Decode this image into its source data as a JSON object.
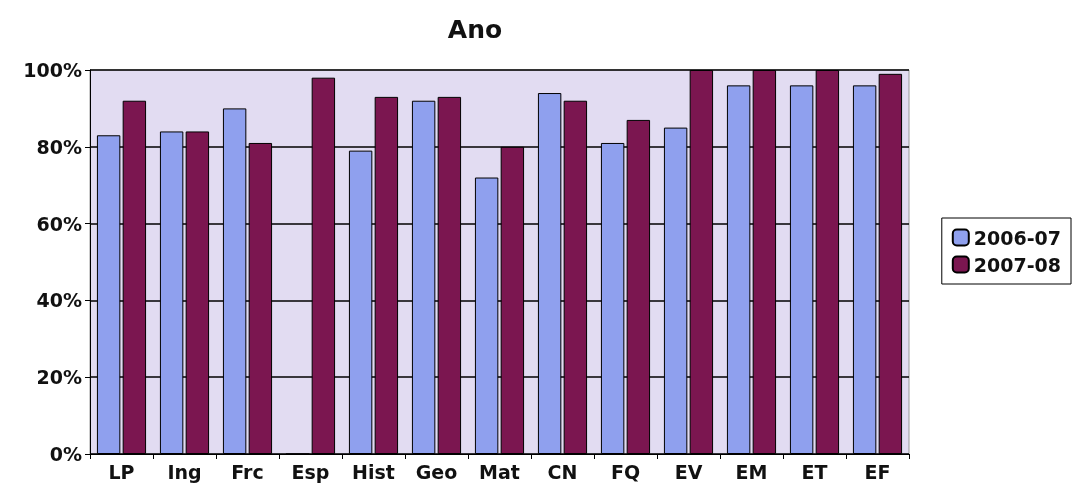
{
  "chart_data": {
    "type": "bar",
    "title": "Ano",
    "categories": [
      "LP",
      "Ing",
      "Frc",
      "Esp",
      "Hist",
      "Geo",
      "Mat",
      "CN",
      "FQ",
      "EV",
      "EM",
      "ET",
      "EF"
    ],
    "series": [
      {
        "name": "2006-07",
        "color": "#8fa0ee",
        "values": [
          83,
          84,
          90,
          0,
          79,
          92,
          72,
          94,
          81,
          85,
          96,
          96,
          96
        ]
      },
      {
        "name": "2007-08",
        "color": "#7b1650",
        "values": [
          92,
          84,
          81,
          98,
          93,
          93,
          80,
          92,
          87,
          100,
          100,
          100,
          99
        ]
      }
    ],
    "ylim": [
      0,
      100
    ],
    "yticks": [
      {
        "value": 0,
        "label": "0%"
      },
      {
        "value": 20,
        "label": "20%"
      },
      {
        "value": 40,
        "label": "40%"
      },
      {
        "value": 60,
        "label": "60%"
      },
      {
        "value": 80,
        "label": "80%"
      },
      {
        "value": 100,
        "label": "100%"
      }
    ],
    "grid": "y",
    "legend": "right"
  }
}
